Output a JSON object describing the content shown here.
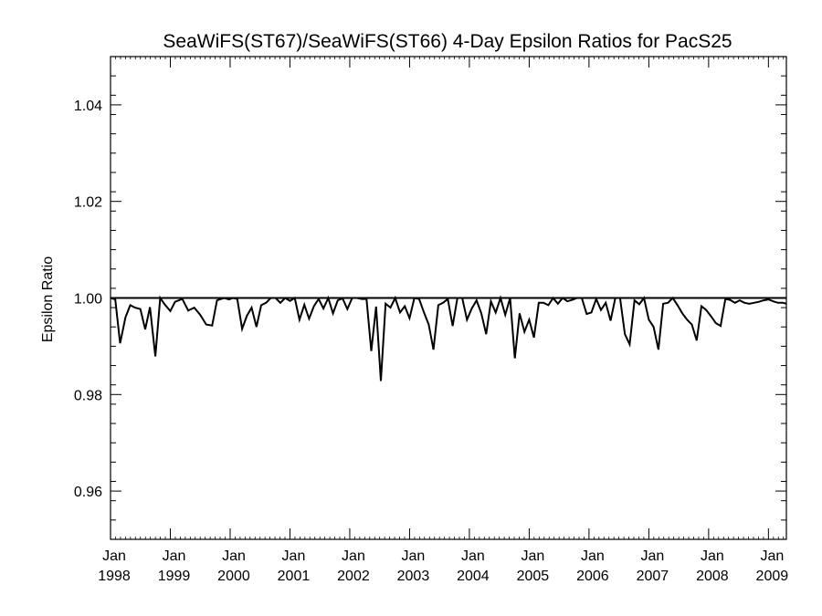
{
  "chart_data": {
    "type": "line",
    "title": "SeaWiFS(ST67)/SeaWiFS(ST66) 4-Day Epsilon Ratios for PacS25",
    "xlabel": "",
    "ylabel": "Epsilon Ratio",
    "xlim": [
      1998.0,
      2009.3
    ],
    "ylim": [
      0.95,
      1.05
    ],
    "y_ticks": [
      0.96,
      0.98,
      1.0,
      1.02,
      1.04
    ],
    "y_tick_labels": [
      "0.96",
      "0.98",
      "1.00",
      "1.02",
      "1.04"
    ],
    "y_minor_step": 0.004,
    "x_ticks": [
      1998,
      1999,
      2000,
      2001,
      2002,
      2003,
      2004,
      2005,
      2006,
      2007,
      2008,
      2009
    ],
    "x_tick_month": "Jan",
    "x_tick_labels": [
      "1998",
      "1999",
      "2000",
      "2001",
      "2002",
      "2003",
      "2004",
      "2005",
      "2006",
      "2007",
      "2008",
      "2009"
    ],
    "reference_line": 1.0,
    "grid": false,
    "line_color": "#000000",
    "series": [
      {
        "x": [
          1998.0,
          1998.08,
          1998.16,
          1998.25,
          1998.33,
          1998.41,
          1998.5,
          1998.58,
          1998.66,
          1998.75,
          1998.83,
          1998.91,
          1999.0,
          1999.08,
          1999.2,
          1999.3,
          1999.4,
          1999.5,
          1999.6,
          1999.7,
          1999.78,
          1999.9,
          1999.98,
          2000.05,
          2000.12,
          2000.2,
          2000.28,
          2000.36,
          2000.44,
          2000.52,
          2000.6,
          2000.68,
          2000.76,
          2000.84,
          2000.92,
          2001.0,
          2001.08,
          2001.16,
          2001.24,
          2001.32,
          2001.4,
          2001.48,
          2001.56,
          2001.64,
          2001.72,
          2001.8,
          2001.88,
          2001.96,
          2002.04,
          2002.12,
          2002.2,
          2002.28,
          2002.36,
          2002.44,
          2002.52,
          2002.6,
          2002.68,
          2002.76,
          2002.84,
          2002.92,
          2003.0,
          2003.08,
          2003.16,
          2003.24,
          2003.32,
          2003.4,
          2003.48,
          2003.56,
          2003.64,
          2003.72,
          2003.8,
          2003.88,
          2003.96,
          2004.04,
          2004.12,
          2004.2,
          2004.28,
          2004.36,
          2004.44,
          2004.52,
          2004.6,
          2004.68,
          2004.76,
          2004.84,
          2004.92,
          2005.0,
          2005.08,
          2005.16,
          2005.24,
          2005.32,
          2005.4,
          2005.48,
          2005.56,
          2005.64,
          2005.72,
          2005.8,
          2005.88,
          2005.96,
          2006.04,
          2006.12,
          2006.2,
          2006.28,
          2006.36,
          2006.44,
          2006.52,
          2006.6,
          2006.68,
          2006.76,
          2006.84,
          2006.92,
          2007.0,
          2007.08,
          2007.16,
          2007.24,
          2007.32,
          2007.4,
          2007.48,
          2007.56,
          2007.64,
          2007.72,
          2007.8,
          2007.88,
          2007.96,
          2008.04,
          2008.12,
          2008.2,
          2008.28,
          2008.36,
          2008.44,
          2008.52,
          2008.6,
          2008.68,
          2008.76,
          2008.84,
          2008.92,
          2009.0,
          2009.08,
          2009.16,
          2009.24,
          2009.3
        ],
        "y": [
          1.0,
          0.9997,
          0.9906,
          0.996,
          0.9985,
          0.998,
          0.9977,
          0.9935,
          0.9981,
          0.9879,
          1.0,
          0.9986,
          0.9973,
          0.9992,
          0.9998,
          0.9974,
          0.998,
          0.9965,
          0.9945,
          0.9943,
          0.9995,
          1.0,
          0.9997,
          1.0,
          0.9998,
          0.9936,
          0.9963,
          0.998,
          0.994,
          0.9985,
          0.999,
          1.0,
          1.0,
          0.999,
          1.0,
          0.9994,
          1.0,
          0.9955,
          0.9986,
          0.9957,
          0.9983,
          0.9998,
          0.9978,
          1.0,
          0.9968,
          0.9995,
          0.9999,
          0.9977,
          1.0,
          1.0,
          0.9998,
          0.9998,
          0.989,
          0.9982,
          0.9828,
          0.9988,
          0.998,
          1.0,
          0.997,
          0.9983,
          0.9958,
          1.0,
          0.9998,
          0.997,
          0.9945,
          0.9893,
          0.9985,
          0.999,
          0.9998,
          0.9942,
          1.0,
          1.0,
          0.9955,
          0.9978,
          0.9995,
          0.9968,
          0.9925,
          0.9993,
          0.997,
          1.0,
          0.9965,
          1.0,
          0.9875,
          0.9968,
          0.993,
          0.9955,
          0.9918,
          0.999,
          0.999,
          0.9985,
          1.0,
          0.9988,
          1.0,
          0.9993,
          0.9996,
          1.0,
          1.0,
          0.9967,
          0.997,
          0.9998,
          0.9975,
          0.999,
          0.9953,
          1.0,
          1.0,
          0.9925,
          0.9904,
          0.9995,
          0.9987,
          1.0,
          0.9955,
          0.994,
          0.9893,
          0.9988,
          0.999,
          1.0,
          0.9985,
          0.9968,
          0.9955,
          0.9945,
          0.9912,
          0.9983,
          0.9975,
          0.9962,
          0.9948,
          0.9942,
          0.9998,
          0.9996,
          0.999,
          0.9995,
          0.999,
          0.9988,
          0.999,
          0.9992,
          0.9995,
          0.9997,
          0.9993,
          0.999,
          0.999,
          0.9988
        ]
      }
    ]
  }
}
